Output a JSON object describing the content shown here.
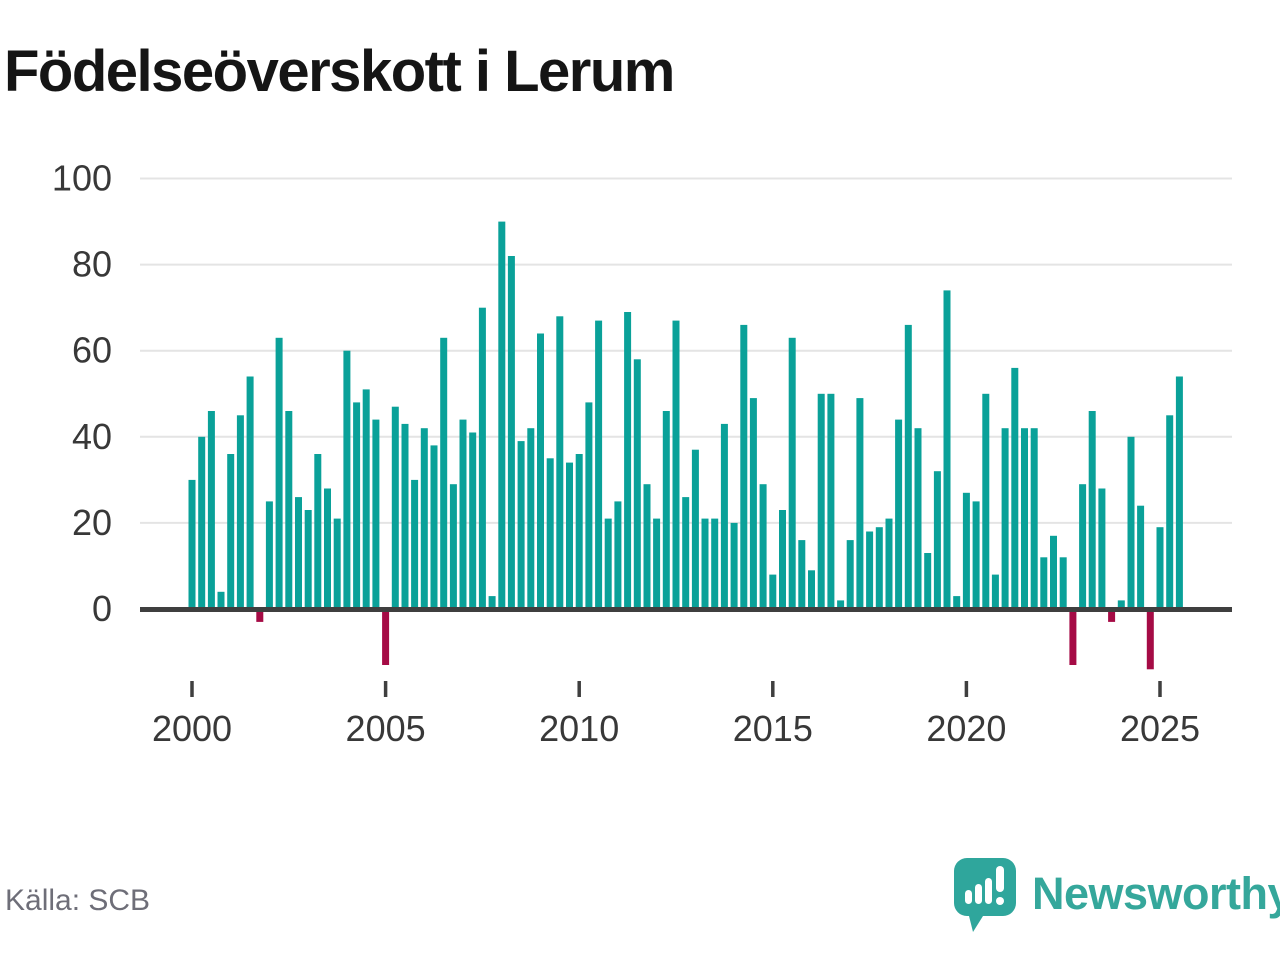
{
  "title": "Födelseöverskott i Lerum",
  "source": "Källa: SCB",
  "brand": {
    "name": "Newsworthy",
    "logo_icon": "speech-bubble-bar-chart-icon"
  },
  "colors": {
    "bar_positive": "#0aa199",
    "bar_negative": "#a50b45",
    "gridline": "#e4e4e4",
    "axis_line": "#3f3f3f",
    "tick_label": "#383838",
    "title": "#151515",
    "source_text": "#6e6e78",
    "brand_teal": "#35a79b"
  },
  "chart_data": {
    "type": "bar",
    "title": "Födelseöverskott i Lerum",
    "xlabel": "",
    "ylabel": "",
    "frequency": "quarterly",
    "x_range": "2000-Q1 to 2025-Q3",
    "ylim": [
      -16,
      100
    ],
    "yticks": [
      0,
      20,
      40,
      60,
      80,
      100
    ],
    "xticks": [
      2000,
      2005,
      2010,
      2015,
      2020,
      2025
    ],
    "grid": true,
    "legend": "none",
    "categories": [
      "2000-Q1",
      "2000-Q2",
      "2000-Q3",
      "2000-Q4",
      "2001-Q1",
      "2001-Q2",
      "2001-Q3",
      "2001-Q4",
      "2002-Q1",
      "2002-Q2",
      "2002-Q3",
      "2002-Q4",
      "2003-Q1",
      "2003-Q2",
      "2003-Q3",
      "2003-Q4",
      "2004-Q1",
      "2004-Q2",
      "2004-Q3",
      "2004-Q4",
      "2005-Q1",
      "2005-Q2",
      "2005-Q3",
      "2005-Q4",
      "2006-Q1",
      "2006-Q2",
      "2006-Q3",
      "2006-Q4",
      "2007-Q1",
      "2007-Q2",
      "2007-Q3",
      "2007-Q4",
      "2008-Q1",
      "2008-Q2",
      "2008-Q3",
      "2008-Q4",
      "2009-Q1",
      "2009-Q2",
      "2009-Q3",
      "2009-Q4",
      "2010-Q1",
      "2010-Q2",
      "2010-Q3",
      "2010-Q4",
      "2011-Q1",
      "2011-Q2",
      "2011-Q3",
      "2011-Q4",
      "2012-Q1",
      "2012-Q2",
      "2012-Q3",
      "2012-Q4",
      "2013-Q1",
      "2013-Q2",
      "2013-Q3",
      "2013-Q4",
      "2014-Q1",
      "2014-Q2",
      "2014-Q3",
      "2014-Q4",
      "2015-Q1",
      "2015-Q2",
      "2015-Q3",
      "2015-Q4",
      "2016-Q1",
      "2016-Q2",
      "2016-Q3",
      "2016-Q4",
      "2017-Q1",
      "2017-Q2",
      "2017-Q3",
      "2017-Q4",
      "2018-Q1",
      "2018-Q2",
      "2018-Q3",
      "2018-Q4",
      "2019-Q1",
      "2019-Q2",
      "2019-Q3",
      "2019-Q4",
      "2020-Q1",
      "2020-Q2",
      "2020-Q3",
      "2020-Q4",
      "2021-Q1",
      "2021-Q2",
      "2021-Q3",
      "2021-Q4",
      "2022-Q1",
      "2022-Q2",
      "2022-Q3",
      "2022-Q4",
      "2023-Q1",
      "2023-Q2",
      "2023-Q3",
      "2023-Q4",
      "2024-Q1",
      "2024-Q2",
      "2024-Q3",
      "2024-Q4",
      "2025-Q1",
      "2025-Q2",
      "2025-Q3"
    ],
    "values": [
      30,
      40,
      46,
      4,
      36,
      45,
      54,
      -3,
      25,
      63,
      46,
      26,
      23,
      36,
      28,
      21,
      60,
      48,
      51,
      44,
      -13,
      47,
      43,
      30,
      42,
      38,
      63,
      29,
      44,
      41,
      70,
      3,
      90,
      82,
      39,
      42,
      64,
      35,
      68,
      34,
      36,
      48,
      67,
      21,
      25,
      69,
      58,
      29,
      21,
      46,
      67,
      26,
      37,
      21,
      21,
      43,
      20,
      66,
      49,
      29,
      8,
      23,
      63,
      16,
      9,
      50,
      50,
      2,
      16,
      49,
      18,
      19,
      21,
      44,
      66,
      42,
      13,
      32,
      74,
      3,
      27,
      25,
      50,
      8,
      42,
      56,
      42,
      42,
      12,
      17,
      12,
      -13,
      29,
      46,
      28,
      -3,
      2,
      40,
      24,
      -14,
      19,
      45,
      54
    ]
  }
}
